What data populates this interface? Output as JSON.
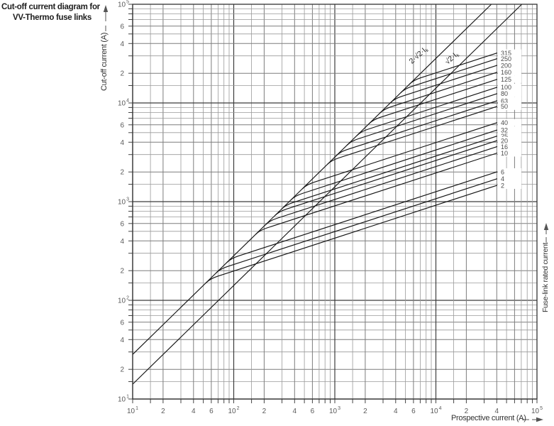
{
  "title": {
    "line1": "Cut-off current diagram for",
    "line2": "VV-Thermo fuse links"
  },
  "axes": {
    "x_label": "Prospective current (A)",
    "y_label": "Cut-off current (A)",
    "right_label": "Fuse-link rated current"
  },
  "chart_data": {
    "type": "line",
    "title": "Cut-off current diagram for VV-Thermo fuse links",
    "xlabel": "Prospective current (A)",
    "ylabel": "Cut-off current (A)",
    "x_scale": "log",
    "y_scale": "log",
    "xlim": [
      10,
      100000
    ],
    "ylim": [
      10,
      100000
    ],
    "grid": true,
    "tick_labeled_mantissas": [
      2,
      4,
      6
    ],
    "x_last_decade_labeled_mantissas": [
      2,
      4
    ],
    "reference_lines": [
      {
        "name": "asymmetrical-peak-line",
        "factor": 2.828,
        "label": "2·√2·I",
        "label_sub": "k",
        "label_x": 592,
        "label_y": 80,
        "label_angle": -42
      },
      {
        "name": "symmetrical-peak-line",
        "factor": 1.414,
        "label": "√2·I",
        "label_sub": "k",
        "label_x": 639,
        "label_y": 84,
        "label_angle": -42
      }
    ],
    "curve_model": {
      "description": "Each fuse curve follows the 2·√2·Ik peak line at low prospective current, then branches off with slope 1/3 (cut-off ∝ I^(1/3)) up to the curve end",
      "slope_exponent": 0.3333,
      "end_prospective_A": 40000
    },
    "fuse_curves": [
      {
        "rating_A": 315,
        "cutoff_peak_A": 32000
      },
      {
        "rating_A": 250,
        "cutoff_peak_A": 28000
      },
      {
        "rating_A": 200,
        "cutoff_peak_A": 24000
      },
      {
        "rating_A": 160,
        "cutoff_peak_A": 20400
      },
      {
        "rating_A": 125,
        "cutoff_peak_A": 17300
      },
      {
        "rating_A": 100,
        "cutoff_peak_A": 14400
      },
      {
        "rating_A": 80,
        "cutoff_peak_A": 12400
      },
      {
        "rating_A": 63,
        "cutoff_peak_A": 10500
      },
      {
        "rating_A": 50,
        "cutoff_peak_A": 9200
      },
      {
        "rating_A": 40,
        "cutoff_peak_A": 6300
      },
      {
        "rating_A": 32,
        "cutoff_peak_A": 5300
      },
      {
        "rating_A": 25,
        "cutoff_peak_A": 4600
      },
      {
        "rating_A": 20,
        "cutoff_peak_A": 4150
      },
      {
        "rating_A": 16,
        "cutoff_peak_A": 3600
      },
      {
        "rating_A": 10,
        "cutoff_peak_A": 3100
      },
      {
        "rating_A": 6,
        "cutoff_peak_A": 2000
      },
      {
        "rating_A": 4,
        "cutoff_peak_A": 1700
      },
      {
        "rating_A": 2,
        "cutoff_peak_A": 1460
      }
    ],
    "colors": {
      "background": "#ffffff",
      "grid_minor": "#9a9a9a",
      "grid_mid": "#7d7d7d",
      "grid_major": "#3c3c3c",
      "curve": "#141414",
      "tick_text": "#5a5a5a",
      "frame": "#333333"
    }
  }
}
